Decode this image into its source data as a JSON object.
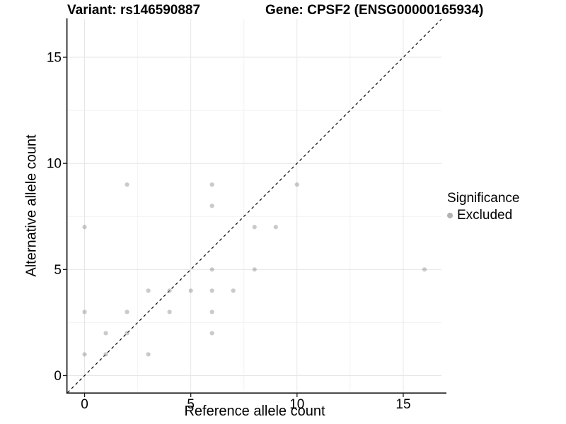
{
  "header": {
    "variant_title": "Variant: rs146590887",
    "gene_title": "Gene: CPSF2 (ENSG00000165934)"
  },
  "chart_data": {
    "type": "scatter",
    "xlabel": "Reference allele count",
    "ylabel": "Alternative allele count",
    "xlim": [
      -0.8,
      16.8
    ],
    "ylim": [
      -0.8,
      16.8
    ],
    "xticks": [
      0,
      5,
      10,
      15
    ],
    "yticks": [
      0,
      5,
      10,
      15
    ],
    "xminor": [
      2.5,
      7.5,
      12.5
    ],
    "yminor": [
      2.5,
      7.5,
      12.5
    ],
    "grid": "major and minor gridlines on white panel",
    "identity_line": {
      "kind": "y=x dashed abline",
      "color": "#000000",
      "dash": "4 4",
      "width": 1.2
    },
    "series": [
      {
        "name": "Excluded",
        "color": "#8a8a8a",
        "opacity": 0.45,
        "radius": 3.1,
        "points": [
          [
            0,
            1
          ],
          [
            0,
            3
          ],
          [
            0,
            7
          ],
          [
            1,
            1
          ],
          [
            1,
            2
          ],
          [
            2,
            2
          ],
          [
            2,
            3
          ],
          [
            2,
            9
          ],
          [
            3,
            1
          ],
          [
            3,
            4
          ],
          [
            4,
            3
          ],
          [
            4,
            4
          ],
          [
            5,
            4
          ],
          [
            6,
            2
          ],
          [
            6,
            3
          ],
          [
            6,
            4
          ],
          [
            6,
            5
          ],
          [
            6,
            8
          ],
          [
            6,
            9
          ],
          [
            7,
            4
          ],
          [
            8,
            5
          ],
          [
            8,
            7
          ],
          [
            9,
            7
          ],
          [
            10,
            9
          ],
          [
            16,
            5
          ]
        ]
      }
    ],
    "legend": {
      "title": "Significance",
      "position": "right",
      "entries": [
        {
          "label": "Excluded",
          "marker_color": "#b3b3b3"
        }
      ]
    }
  },
  "colors": {
    "background": "#ffffff",
    "grid_major": "#e6e6e6",
    "grid_minor": "#f2f2f2",
    "axis_line": "#1a1a1a",
    "text": "#000000"
  }
}
